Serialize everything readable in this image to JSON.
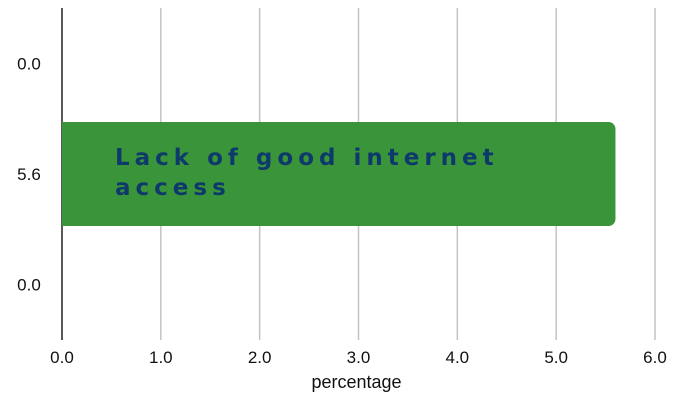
{
  "chart_data": {
    "type": "bar",
    "orientation": "horizontal",
    "categories": [
      "0.0",
      "5.6",
      "0.0"
    ],
    "values": [
      0.0,
      5.6,
      0.0
    ],
    "bar_labels": [
      "",
      "Lack of good internet access",
      ""
    ],
    "bar_label_lines": [
      [],
      [
        "Lack of good internet",
        "access"
      ],
      []
    ],
    "title": "",
    "xlabel": "percentage",
    "ylabel": "",
    "xlim": [
      0,
      6.0
    ],
    "xticks": [
      "0.0",
      "1.0",
      "2.0",
      "3.0",
      "4.0",
      "5.0",
      "6.0"
    ],
    "grid": "vertical",
    "legend": "none",
    "colors": {
      "bar": "#3a953a",
      "bar_label": "#0e3a6b",
      "grid": "#c4c4c4",
      "axis": "#222222"
    }
  }
}
